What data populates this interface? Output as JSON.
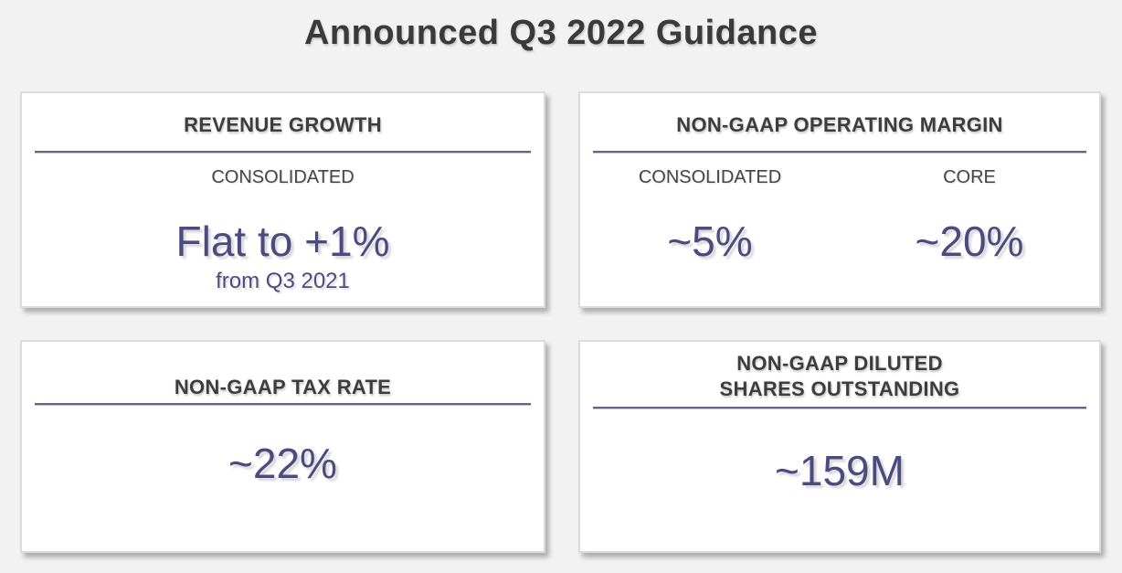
{
  "slide": {
    "title": "Announced Q3 2022 Guidance"
  },
  "cards": {
    "revenue_growth": {
      "title": "REVENUE GROWTH",
      "label": "CONSOLIDATED",
      "value": "Flat to +1%",
      "note": "from Q3 2021"
    },
    "operating_margin": {
      "title": "NON-GAAP OPERATING MARGIN",
      "columns": [
        {
          "label": "CONSOLIDATED",
          "value": "~5%"
        },
        {
          "label": "CORE",
          "value": "~20%"
        }
      ]
    },
    "tax_rate": {
      "title": "NON-GAAP TAX RATE",
      "value": "~22%"
    },
    "diluted_shares": {
      "title_lines": [
        "NON-GAAP DILUTED",
        "SHARES OUTSTANDING"
      ],
      "value": "~159M"
    }
  },
  "colors": {
    "page_background": "#f2f2f2",
    "card_background": "#ffffff",
    "card_border": "#dcdcdc",
    "title_text": "#3a3a3a",
    "header_text": "#3d3d3d",
    "label_text": "#464646",
    "value_text": "#4b4c7d",
    "divider": "#64648a"
  }
}
